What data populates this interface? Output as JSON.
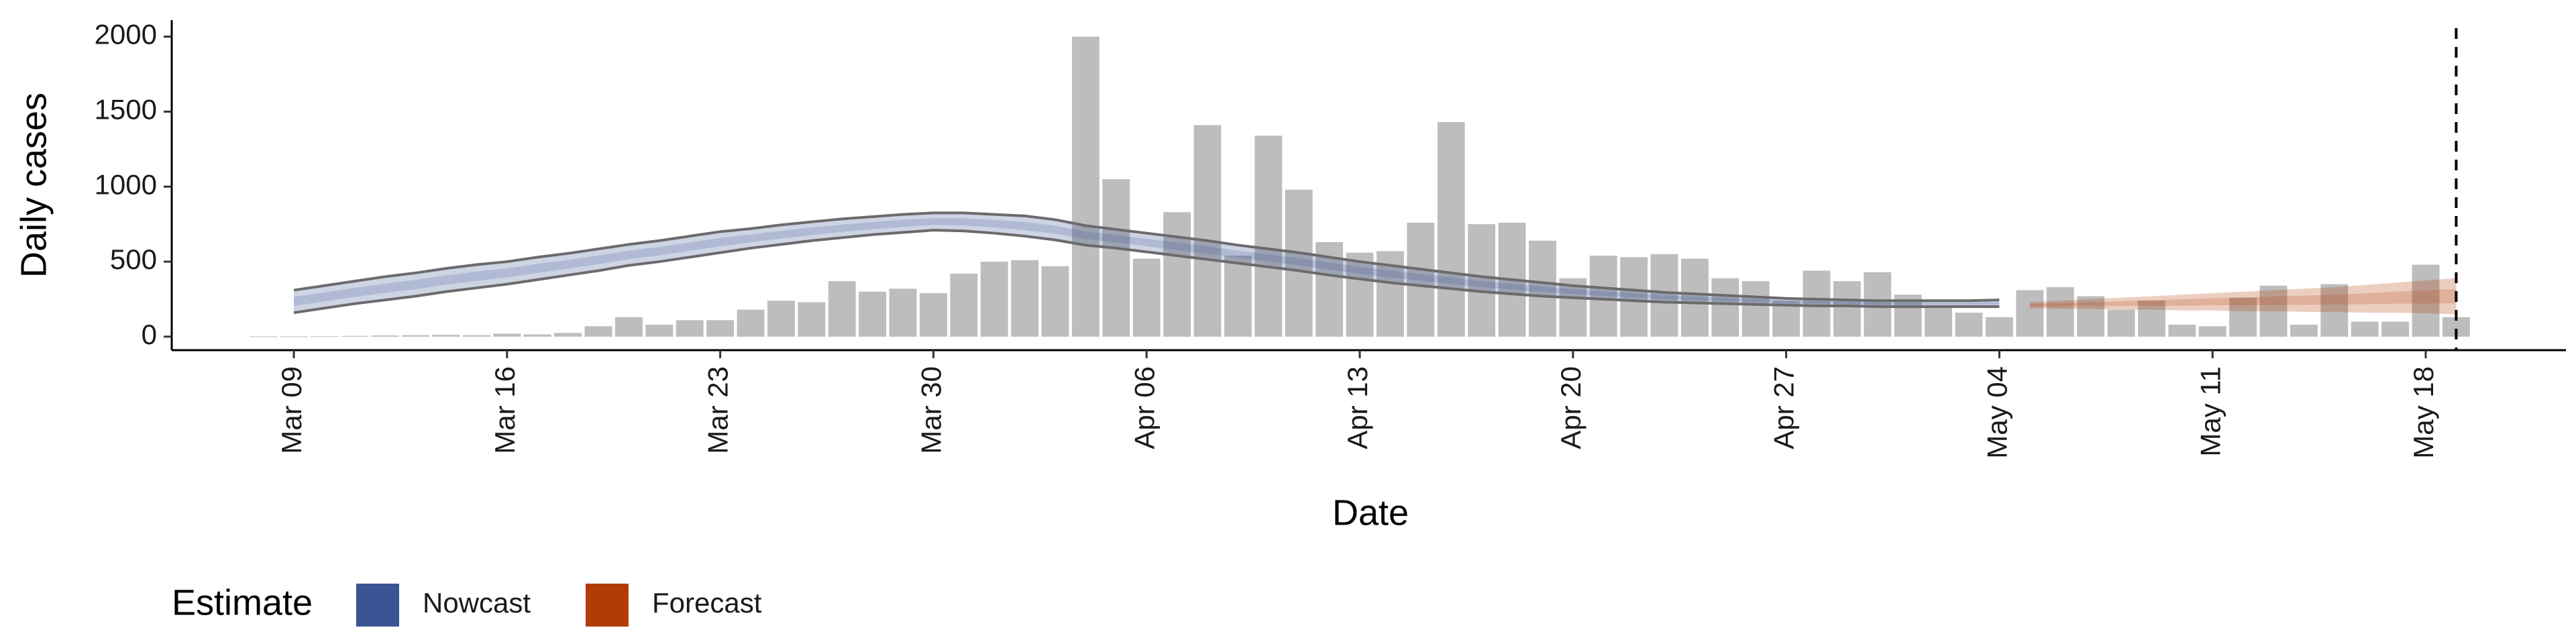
{
  "chart_data": {
    "type": "bar",
    "x_label": "Date",
    "y_label": "Daily cases",
    "categories": [
      "Mar 08",
      "Mar 09",
      "Mar 10",
      "Mar 11",
      "Mar 12",
      "Mar 13",
      "Mar 14",
      "Mar 15",
      "Mar 16",
      "Mar 17",
      "Mar 18",
      "Mar 19",
      "Mar 20",
      "Mar 21",
      "Mar 22",
      "Mar 23",
      "Mar 24",
      "Mar 25",
      "Mar 26",
      "Mar 27",
      "Mar 28",
      "Mar 29",
      "Mar 30",
      "Mar 31",
      "Apr 01",
      "Apr 02",
      "Apr 03",
      "Apr 04",
      "Apr 05",
      "Apr 06",
      "Apr 07",
      "Apr 08",
      "Apr 09",
      "Apr 10",
      "Apr 11",
      "Apr 12",
      "Apr 13",
      "Apr 14",
      "Apr 15",
      "Apr 16",
      "Apr 17",
      "Apr 18",
      "Apr 19",
      "Apr 20",
      "Apr 21",
      "Apr 22",
      "Apr 23",
      "Apr 24",
      "Apr 25",
      "Apr 26",
      "Apr 27",
      "Apr 28",
      "Apr 29",
      "Apr 30",
      "May 01",
      "May 02",
      "May 03",
      "May 04",
      "May 05",
      "May 06",
      "May 07",
      "May 08",
      "May 09",
      "May 10",
      "May 11",
      "May 12",
      "May 13",
      "May 14",
      "May 15",
      "May 16",
      "May 17",
      "May 18",
      "May 19"
    ],
    "values": [
      2,
      2,
      3,
      5,
      8,
      10,
      12,
      10,
      20,
      15,
      25,
      70,
      130,
      80,
      110,
      110,
      180,
      240,
      230,
      370,
      300,
      320,
      290,
      420,
      500,
      510,
      470,
      2000,
      1050,
      520,
      830,
      1410,
      540,
      1340,
      980,
      630,
      560,
      570,
      760,
      1430,
      750,
      760,
      640,
      390,
      540,
      530,
      550,
      520,
      390,
      370,
      240,
      440,
      370,
      430,
      280,
      200,
      160,
      130,
      310,
      330,
      270,
      180,
      240,
      80,
      70,
      260,
      340,
      80,
      350,
      100,
      100,
      480,
      130
    ],
    "color": "#bdbdbd",
    "ribbons": [
      {
        "name": "Nowcast",
        "color": "#3b5594",
        "line_color": "#6b6b6b",
        "upper": [
          null,
          310,
          340,
          370,
          400,
          425,
          455,
          480,
          500,
          530,
          555,
          585,
          615,
          640,
          670,
          700,
          720,
          745,
          765,
          785,
          800,
          815,
          825,
          825,
          815,
          805,
          780,
          740,
          715,
          690,
          665,
          640,
          610,
          585,
          560,
          530,
          500,
          475,
          450,
          425,
          400,
          380,
          360,
          340,
          325,
          310,
          295,
          285,
          275,
          265,
          255,
          250,
          245,
          240,
          240,
          240,
          240,
          245,
          null,
          null,
          null,
          null,
          null,
          null,
          null,
          null,
          null,
          null,
          null,
          null,
          null,
          null,
          null
        ],
        "lower": [
          null,
          160,
          190,
          220,
          245,
          270,
          300,
          325,
          350,
          380,
          410,
          440,
          475,
          500,
          530,
          560,
          590,
          615,
          640,
          660,
          680,
          695,
          710,
          705,
          690,
          670,
          645,
          610,
          590,
          565,
          540,
          515,
          490,
          465,
          440,
          410,
          385,
          360,
          340,
          320,
          300,
          285,
          270,
          260,
          250,
          240,
          230,
          225,
          220,
          215,
          210,
          205,
          205,
          200,
          200,
          200,
          200,
          200,
          null,
          null,
          null,
          null,
          null,
          null,
          null,
          null,
          null,
          null,
          null,
          null,
          null,
          null,
          null
        ]
      },
      {
        "name": "Forecast",
        "color": "#b33c05",
        "upper": [
          null,
          null,
          null,
          null,
          null,
          null,
          null,
          null,
          null,
          null,
          null,
          null,
          null,
          null,
          null,
          null,
          null,
          null,
          null,
          null,
          null,
          null,
          null,
          null,
          null,
          null,
          null,
          null,
          null,
          null,
          null,
          null,
          null,
          null,
          null,
          null,
          null,
          null,
          null,
          null,
          null,
          null,
          null,
          null,
          null,
          null,
          null,
          null,
          null,
          null,
          null,
          null,
          null,
          null,
          null,
          null,
          null,
          null,
          230,
          240,
          250,
          260,
          270,
          280,
          290,
          300,
          310,
          320,
          330,
          345,
          360,
          375,
          390
        ],
        "lower": [
          null,
          null,
          null,
          null,
          null,
          null,
          null,
          null,
          null,
          null,
          null,
          null,
          null,
          null,
          null,
          null,
          null,
          null,
          null,
          null,
          null,
          null,
          null,
          null,
          null,
          null,
          null,
          null,
          null,
          null,
          null,
          null,
          null,
          null,
          null,
          null,
          null,
          null,
          null,
          null,
          null,
          null,
          null,
          null,
          null,
          null,
          null,
          null,
          null,
          null,
          null,
          null,
          null,
          null,
          null,
          null,
          null,
          null,
          190,
          185,
          185,
          180,
          180,
          175,
          175,
          170,
          170,
          165,
          165,
          160,
          160,
          155,
          150
        ]
      }
    ],
    "legend_title": "Estimate",
    "vline_at": "May 19",
    "ylim": [
      -90,
      2110
    ],
    "yticks": [
      0,
      500,
      1000,
      1500,
      2000
    ],
    "xticks": [
      "Mar 09",
      "Mar 16",
      "Mar 23",
      "Mar 30",
      "Apr 06",
      "Apr 13",
      "Apr 20",
      "Apr 27",
      "May 04",
      "May 11",
      "May 18"
    ]
  }
}
